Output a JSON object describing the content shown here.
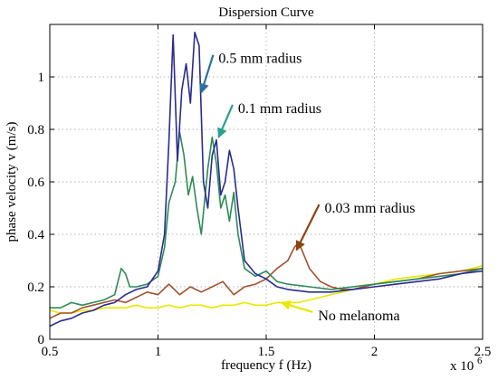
{
  "chart_data": {
    "type": "line",
    "title": "Dispersion Curve",
    "xlabel": "frequency f (Hz)",
    "ylabel": "phase velocity v (m/s)",
    "x_exponent_label": "x 10",
    "x_exponent_power": "6",
    "xlim": [
      0.5,
      2.5
    ],
    "ylim": [
      0,
      1.2
    ],
    "xticks": [
      0.5,
      1,
      1.5,
      2,
      2.5
    ],
    "xtick_labels": [
      "0.5",
      "1",
      "1.5",
      "2",
      "2.5"
    ],
    "yticks": [
      0,
      0.2,
      0.4,
      0.6,
      0.8,
      1
    ],
    "ytick_labels": [
      "0",
      "0.2",
      "0.4",
      "0.6",
      "0.8",
      "1"
    ],
    "grid": true,
    "series": [
      {
        "name": "No melanoma",
        "color": "#e8e800",
        "x": [
          0.5,
          0.55,
          0.6,
          0.65,
          0.7,
          0.75,
          0.8,
          0.85,
          0.9,
          0.95,
          1.0,
          1.05,
          1.1,
          1.15,
          1.2,
          1.25,
          1.3,
          1.35,
          1.4,
          1.45,
          1.5,
          1.55,
          1.6,
          1.65,
          1.7,
          1.75,
          1.8,
          1.85,
          1.9,
          1.95,
          2.0,
          2.1,
          2.2,
          2.3,
          2.4,
          2.5
        ],
        "y": [
          0.11,
          0.1,
          0.1,
          0.11,
          0.11,
          0.12,
          0.12,
          0.12,
          0.13,
          0.12,
          0.12,
          0.13,
          0.12,
          0.13,
          0.13,
          0.12,
          0.13,
          0.13,
          0.14,
          0.13,
          0.13,
          0.14,
          0.14,
          0.14,
          0.15,
          0.16,
          0.17,
          0.18,
          0.19,
          0.2,
          0.21,
          0.23,
          0.24,
          0.25,
          0.26,
          0.28
        ]
      },
      {
        "name": "0.03 mm radius",
        "color": "#a0522d",
        "x": [
          0.5,
          0.55,
          0.6,
          0.65,
          0.7,
          0.75,
          0.8,
          0.85,
          0.9,
          0.95,
          1.0,
          1.05,
          1.1,
          1.15,
          1.2,
          1.25,
          1.3,
          1.35,
          1.4,
          1.45,
          1.5,
          1.55,
          1.6,
          1.63,
          1.65,
          1.67,
          1.7,
          1.75,
          1.8,
          1.85,
          1.9,
          1.95,
          2.0,
          2.1,
          2.2,
          2.3,
          2.4,
          2.5
        ],
        "y": [
          0.08,
          0.1,
          0.1,
          0.12,
          0.13,
          0.14,
          0.15,
          0.14,
          0.16,
          0.18,
          0.17,
          0.21,
          0.17,
          0.2,
          0.18,
          0.2,
          0.22,
          0.17,
          0.2,
          0.21,
          0.23,
          0.27,
          0.3,
          0.35,
          0.37,
          0.33,
          0.27,
          0.22,
          0.2,
          0.19,
          0.19,
          0.2,
          0.21,
          0.22,
          0.23,
          0.25,
          0.26,
          0.27
        ]
      },
      {
        "name": "0.1 mm radius",
        "color": "#2e8b57",
        "x": [
          0.5,
          0.55,
          0.6,
          0.65,
          0.7,
          0.75,
          0.8,
          0.83,
          0.85,
          0.87,
          0.9,
          0.95,
          1.0,
          1.03,
          1.05,
          1.08,
          1.1,
          1.12,
          1.14,
          1.16,
          1.18,
          1.2,
          1.23,
          1.25,
          1.27,
          1.29,
          1.31,
          1.33,
          1.35,
          1.37,
          1.4,
          1.45,
          1.5,
          1.55,
          1.6,
          1.7,
          1.8,
          1.9,
          2.0,
          2.1,
          2.2,
          2.3,
          2.4,
          2.5
        ],
        "y": [
          0.12,
          0.12,
          0.14,
          0.13,
          0.14,
          0.15,
          0.17,
          0.27,
          0.25,
          0.2,
          0.2,
          0.21,
          0.24,
          0.35,
          0.52,
          0.6,
          0.79,
          0.7,
          0.55,
          0.62,
          0.5,
          0.4,
          0.65,
          0.77,
          0.67,
          0.5,
          0.55,
          0.45,
          0.56,
          0.4,
          0.27,
          0.24,
          0.26,
          0.22,
          0.21,
          0.2,
          0.19,
          0.2,
          0.21,
          0.22,
          0.23,
          0.24,
          0.25,
          0.27
        ]
      },
      {
        "name": "0.5 mm radius",
        "color": "#2b2b8f",
        "x": [
          0.5,
          0.55,
          0.6,
          0.65,
          0.7,
          0.75,
          0.8,
          0.85,
          0.9,
          0.95,
          1.0,
          1.03,
          1.05,
          1.07,
          1.09,
          1.11,
          1.13,
          1.15,
          1.17,
          1.19,
          1.21,
          1.23,
          1.25,
          1.27,
          1.29,
          1.31,
          1.33,
          1.35,
          1.37,
          1.4,
          1.45,
          1.5,
          1.55,
          1.6,
          1.7,
          1.8,
          1.9,
          2.0,
          2.1,
          2.2,
          2.3,
          2.4,
          2.5
        ],
        "y": [
          0.05,
          0.07,
          0.08,
          0.1,
          0.11,
          0.13,
          0.14,
          0.17,
          0.19,
          0.2,
          0.26,
          0.4,
          0.75,
          1.16,
          0.68,
          0.95,
          1.05,
          0.9,
          1.17,
          1.12,
          0.6,
          0.5,
          0.7,
          0.76,
          0.55,
          0.6,
          0.72,
          0.65,
          0.5,
          0.3,
          0.25,
          0.23,
          0.2,
          0.19,
          0.18,
          0.18,
          0.19,
          0.2,
          0.21,
          0.22,
          0.23,
          0.25,
          0.26
        ]
      }
    ],
    "annotations": [
      {
        "text": "0.5 mm radius",
        "color": "#2e6f9e",
        "arrow_to": [
          1.2,
          0.94
        ],
        "text_at": [
          1.28,
          1.07
        ]
      },
      {
        "text": "0.1 mm radius",
        "color": "#2aa090",
        "arrow_to": [
          1.28,
          0.77
        ],
        "text_at": [
          1.37,
          0.88
        ]
      },
      {
        "text": "0.03 mm radius",
        "color": "#8b4513",
        "arrow_to": [
          1.64,
          0.34
        ],
        "text_at": [
          1.77,
          0.5
        ]
      },
      {
        "text": "No melanoma",
        "color": "#e8e800",
        "arrow_to": [
          1.57,
          0.14
        ],
        "text_at": [
          1.74,
          0.09
        ]
      }
    ]
  }
}
